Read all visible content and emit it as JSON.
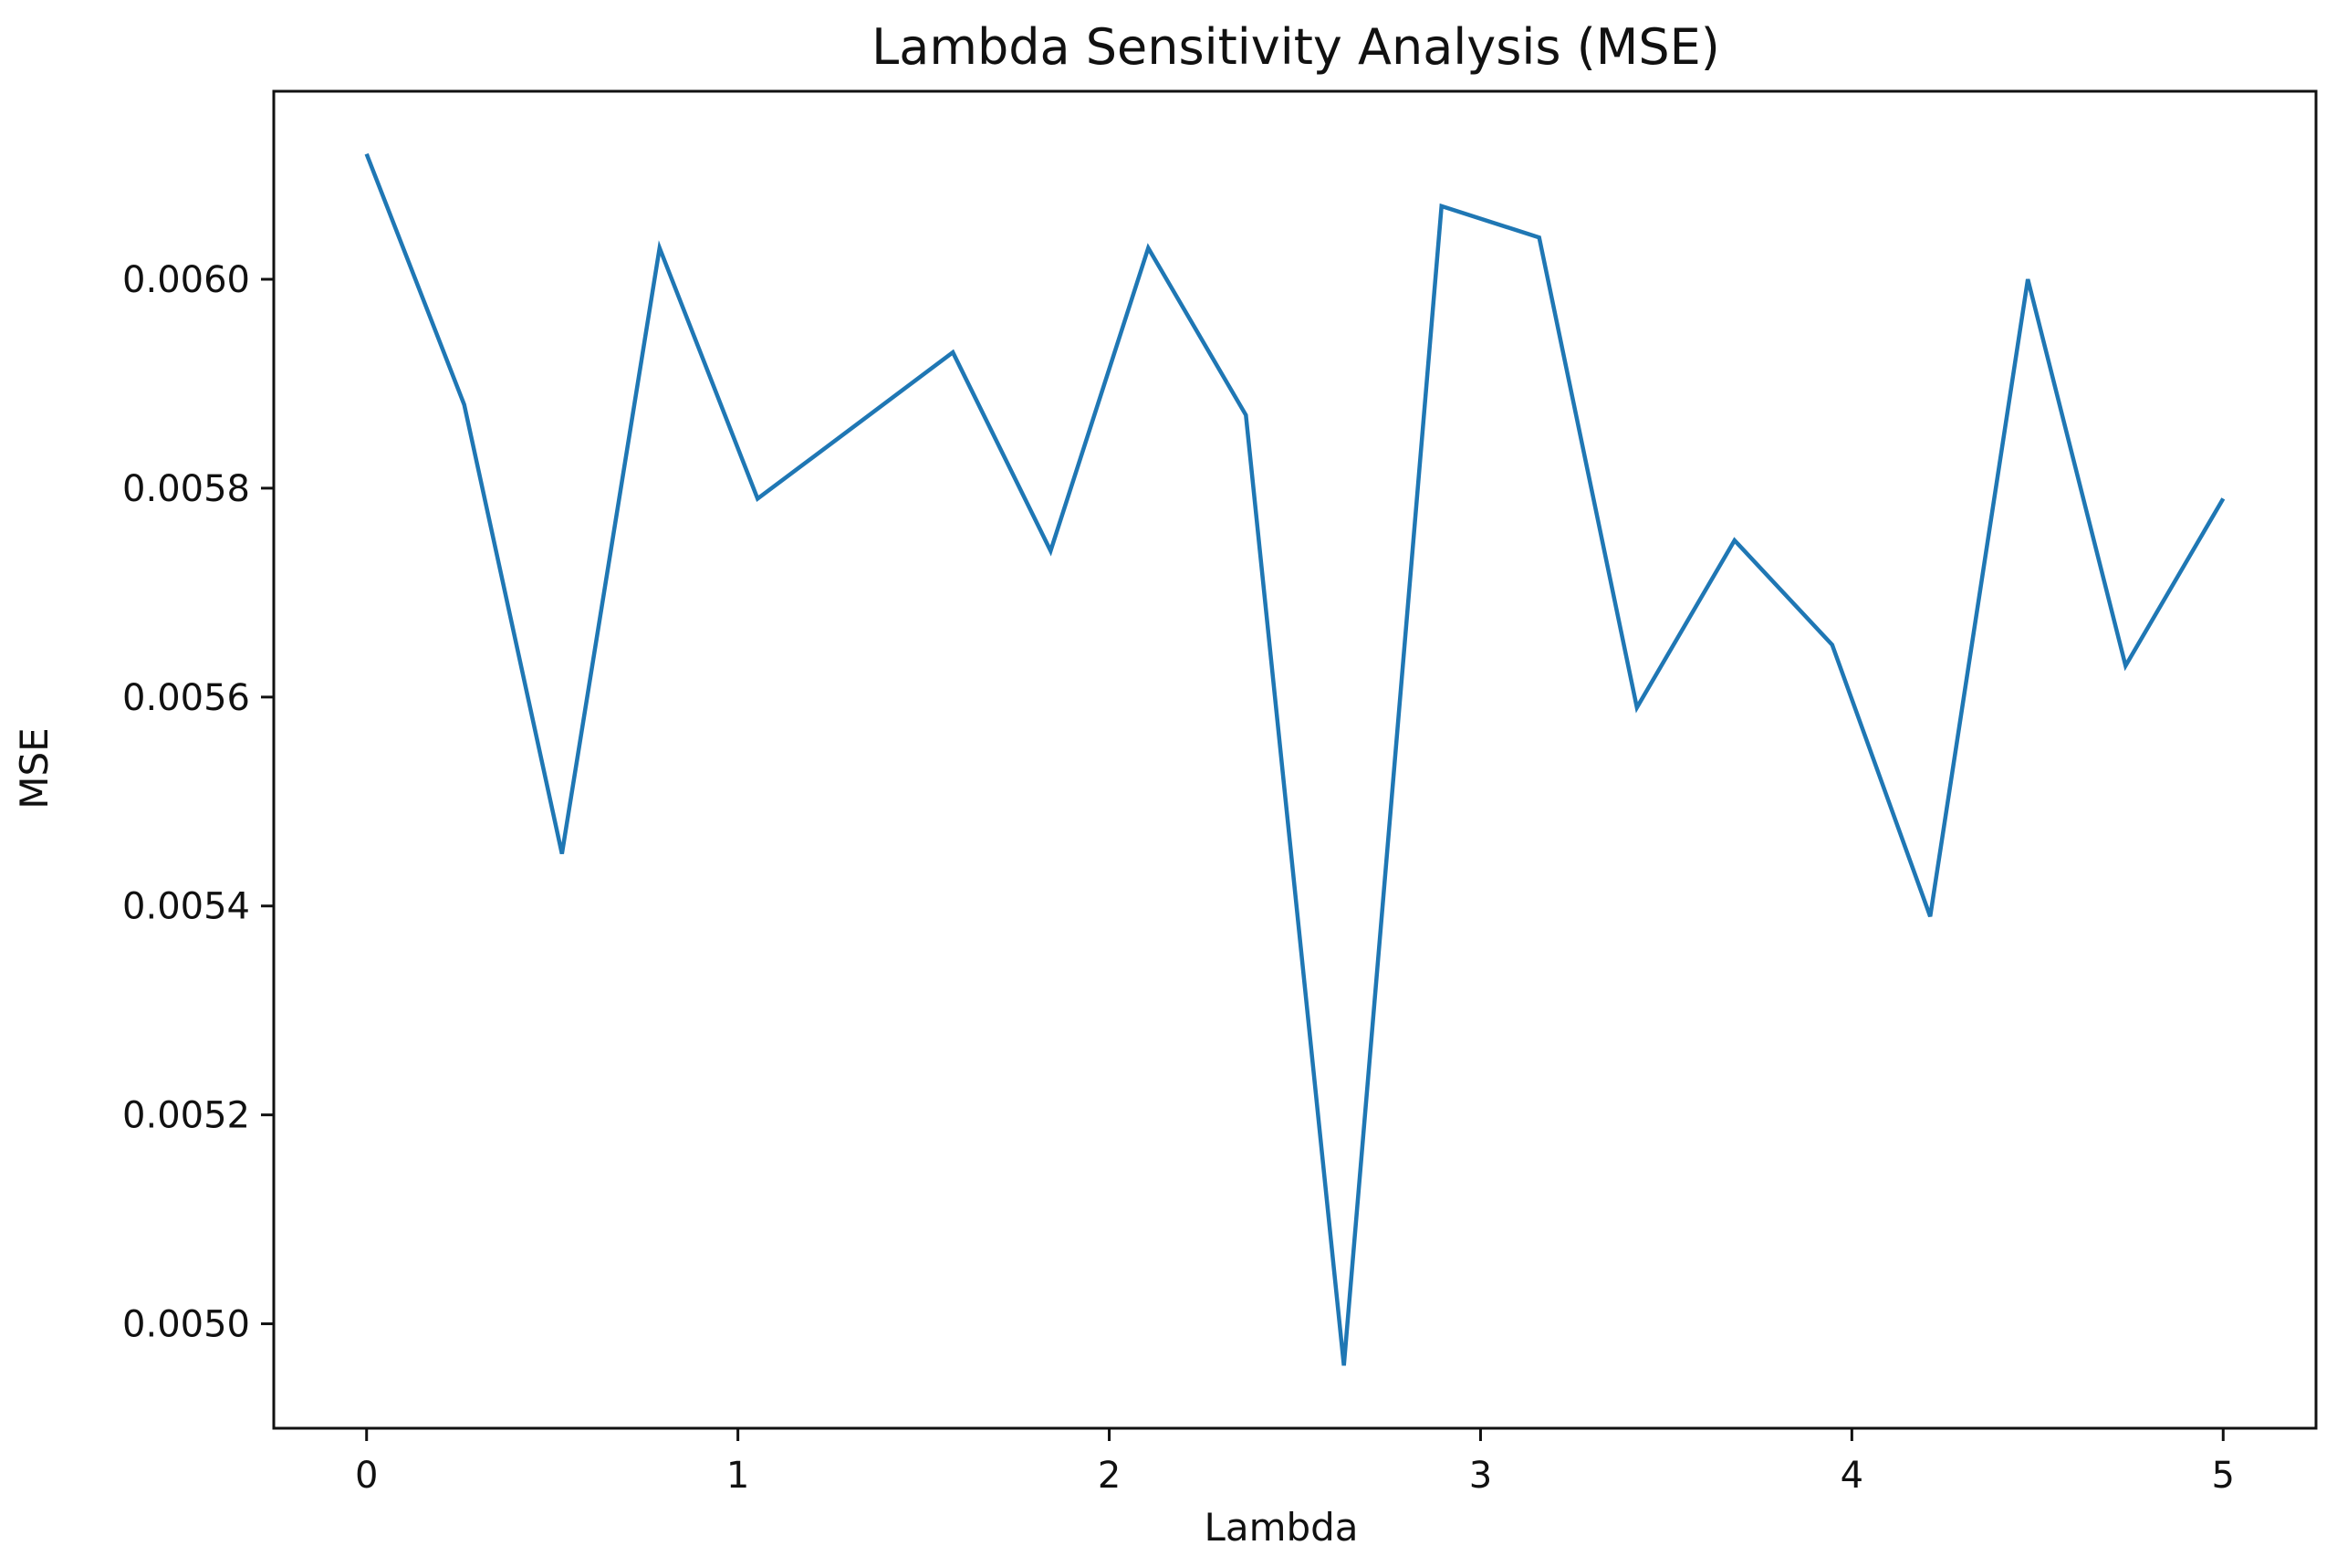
{
  "chart_data": {
    "type": "line",
    "title": "Lambda Sensitivity Analysis (MSE)",
    "xlabel": "Lambda",
    "ylabel": "MSE",
    "xlim": [
      -0.25,
      5.25
    ],
    "ylim": [
      0.0049,
      0.00618
    ],
    "grid": false,
    "legend": "none",
    "x_ticks": [
      0,
      1,
      2,
      3,
      4,
      5
    ],
    "x_tick_labels": [
      "0",
      "1",
      "2",
      "3",
      "4",
      "5"
    ],
    "y_ticks": [
      0.005,
      0.0052,
      0.0054,
      0.0056,
      0.0058,
      0.006
    ],
    "y_tick_labels": [
      "0.0050",
      "0.0052",
      "0.0054",
      "0.0056",
      "0.0058",
      "0.0060"
    ],
    "series": [
      {
        "color": "#1f77b4",
        "x": [
          0,
          0.263,
          0.526,
          0.789,
          1.053,
          1.316,
          1.579,
          1.842,
          2.105,
          2.368,
          2.632,
          2.895,
          3.158,
          3.421,
          3.684,
          3.947,
          4.211,
          4.474,
          4.737,
          5.0
        ],
        "y": [
          0.00612,
          0.00588,
          0.00545,
          0.00603,
          0.00579,
          0.00586,
          0.00593,
          0.00574,
          0.00603,
          0.00587,
          0.00496,
          0.00607,
          0.00604,
          0.00559,
          0.00575,
          0.00565,
          0.00539,
          0.006,
          0.00563,
          0.00579
        ]
      }
    ]
  }
}
